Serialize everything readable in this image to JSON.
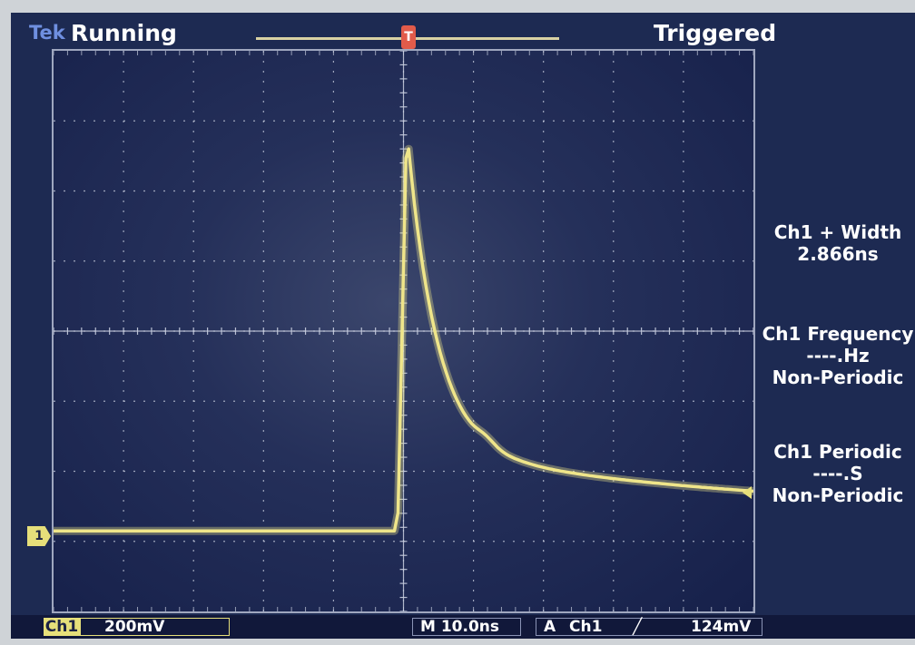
{
  "header": {
    "brand": "Tek",
    "acquisition_state": "Running",
    "trigger_state": "Triggered",
    "trigger_marker_label": "T",
    "trigger_position_label": "T"
  },
  "measurements": [
    {
      "title": "Ch1 + Width",
      "value": "2.866ns",
      "note": ""
    },
    {
      "title": "Ch1 Frequency",
      "value": "----.Hz",
      "note": "Non-Periodic"
    },
    {
      "title": "Ch1 Periodic",
      "value": "----.S",
      "note": "Non-Periodic"
    }
  ],
  "channel": {
    "badge": "Ch1",
    "volts_per_div": "200mV",
    "ground_marker": "1"
  },
  "timebase": {
    "label": "M 10.0ns"
  },
  "trigger": {
    "mode": "A",
    "source": "Ch1",
    "slope_symbol": "╱",
    "level": "124mV"
  },
  "colors": {
    "trace": "#efe58a",
    "screen_bg": "#1d2a52",
    "grid": "#c9cfe0",
    "trigger_marker": "#e25b4a"
  },
  "waveform_shape": {
    "baseline_divisions_below_center": 2.85,
    "peak_divisions_above_center": 2.6,
    "rise_time_divisions": 0.1,
    "tail_level_divisions_below_center": 2.6
  }
}
